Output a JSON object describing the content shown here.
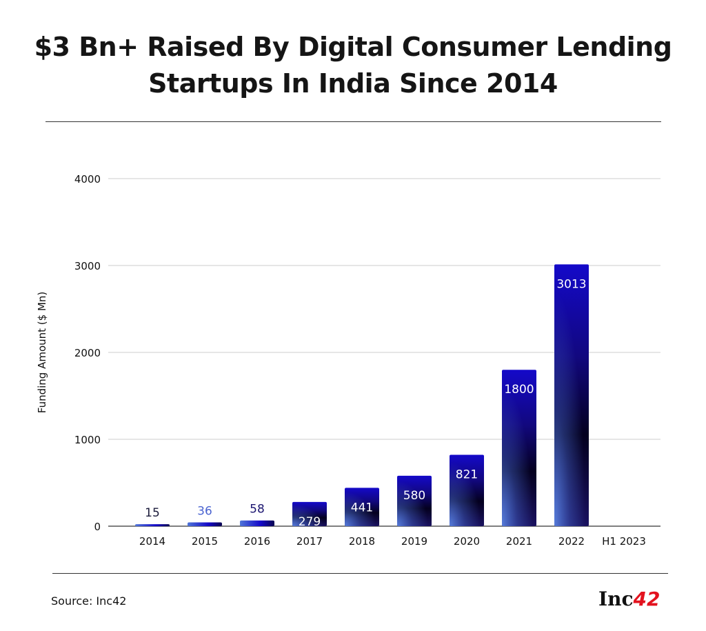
{
  "chart_data": {
    "type": "bar",
    "title": "$3 Bn+ Raised By Digital Consumer Lending Startups In India Since 2014",
    "xlabel": "",
    "ylabel": "Funding Amount ($ Mn)",
    "ylim": [
      0,
      4000
    ],
    "yticks": [
      0,
      1000,
      2000,
      3000,
      4000
    ],
    "grid": true,
    "categories": [
      "2014",
      "2015",
      "2016",
      "2017",
      "2018",
      "2019",
      "2020",
      "2021",
      "2022",
      "H1 2023"
    ],
    "values": [
      15,
      36,
      58,
      279,
      441,
      580,
      821,
      1800,
      3013,
      null
    ],
    "data_labels": [
      "15",
      "36",
      "58",
      "279",
      "441",
      "580",
      "821",
      "1800",
      "3013",
      ""
    ],
    "colors": {
      "bar_top": "#1409c9",
      "bar_mid": "#04001f",
      "bar_glow": "#4f75d8",
      "label_outside": "#1a1a3a",
      "label_2015": "#4a63d0",
      "label_2016": "#1b1570"
    }
  },
  "footer": {
    "source": "Source: Inc42",
    "logo_text": "Inc42",
    "logo_part1": "Inc",
    "logo_part2": "42"
  }
}
